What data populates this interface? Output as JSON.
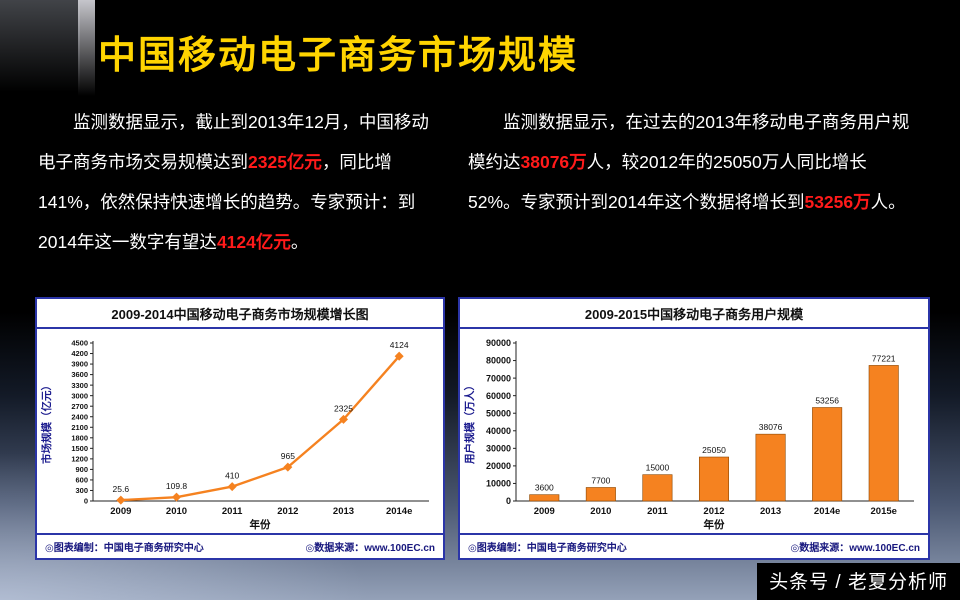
{
  "slide": {
    "title": "中国移动电子商务市场规模",
    "watermark": "头条号 / 老夏分析师"
  },
  "paragraphs": {
    "left": {
      "segments": [
        {
          "text": "监测数据显示，截止到2013年12月，中国移动电子商务市场交易规模达到",
          "highlight": false
        },
        {
          "text": "2325亿元",
          "highlight": true
        },
        {
          "text": "，同比增141%，依然保持快速增长的趋势。专家预计：到2014年这一数字有望达",
          "highlight": false
        },
        {
          "text": "4124亿元",
          "highlight": true
        },
        {
          "text": "。",
          "highlight": false
        }
      ]
    },
    "right": {
      "segments": [
        {
          "text": "监测数据显示，在过去的2013年移动电子商务用户规模约达",
          "highlight": false
        },
        {
          "text": "38076万",
          "highlight": true
        },
        {
          "text": "人，较2012年的25050万人同比增长52%。专家预计到2014年这个数据将增长到",
          "highlight": false
        },
        {
          "text": "53256万",
          "highlight": true
        },
        {
          "text": "人。",
          "highlight": false
        }
      ]
    }
  },
  "chart_data": [
    {
      "type": "line",
      "title": "2009-2014中国移动电子商务市场规模增长图",
      "categories": [
        "2009",
        "2010",
        "2011",
        "2012",
        "2013",
        "2014e"
      ],
      "values": [
        25.6,
        109.8,
        410,
        965,
        2325,
        4124
      ],
      "xlabel": "年份",
      "ylabel": "市场规模（亿元）",
      "ylim": [
        0,
        4500
      ],
      "ytick_step": 300,
      "grid": false,
      "legend": "none",
      "series_color": "#F58220",
      "footer_left": "◎图表编制：中国电子商务研究中心",
      "footer_right": "◎数据来源：www.100EC.cn"
    },
    {
      "type": "bar",
      "title": "2009-2015中国移动电子商务用户规模",
      "categories": [
        "2009",
        "2010",
        "2011",
        "2012",
        "2013",
        "2014e",
        "2015e"
      ],
      "values": [
        3600,
        7700,
        15000,
        25050,
        38076,
        53256,
        77221
      ],
      "xlabel": "年份",
      "ylabel": "用户规模（万人）",
      "ylim": [
        0,
        90000
      ],
      "ytick_step": 10000,
      "grid": false,
      "legend": "none",
      "series_color": "#F58220",
      "footer_left": "◎图表编制：中国电子商务研究中心",
      "footer_right": "◎数据来源：www.100EC.cn"
    }
  ]
}
